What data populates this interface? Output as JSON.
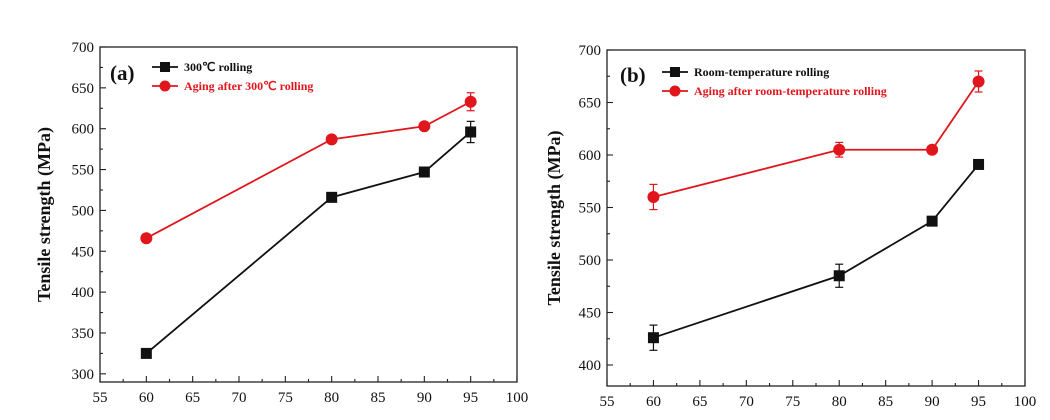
{
  "chart_data": [
    {
      "type": "line",
      "panel_label": "(a)",
      "title": "",
      "xlabel": "",
      "ylabel": "Tensile strength (MPa)",
      "xlim": [
        55,
        100
      ],
      "ylim": [
        290,
        700
      ],
      "x_ticks": [
        55,
        60,
        65,
        70,
        75,
        80,
        85,
        90,
        95,
        100
      ],
      "y_ticks": [
        300,
        350,
        400,
        450,
        500,
        550,
        600,
        650,
        700
      ],
      "legend_position": "top-left",
      "series": [
        {
          "name": "300℃ rolling",
          "color": "#111111",
          "marker": "square",
          "x": [
            60,
            80,
            90,
            95
          ],
          "values": [
            325,
            516,
            547,
            596
          ],
          "errors": [
            0,
            0,
            0,
            13
          ]
        },
        {
          "name": "Aging after 300℃ rolling",
          "color": "#e0161c",
          "marker": "circle",
          "x": [
            60,
            80,
            90,
            95
          ],
          "values": [
            466,
            587,
            603,
            633
          ],
          "errors": [
            0,
            0,
            0,
            11
          ]
        }
      ]
    },
    {
      "type": "line",
      "panel_label": "(b)",
      "title": "",
      "xlabel": "",
      "ylabel": "Tensile strength (MPa)",
      "xlim": [
        55,
        100
      ],
      "ylim": [
        380,
        700
      ],
      "x_ticks": [
        55,
        60,
        65,
        70,
        75,
        80,
        85,
        90,
        95,
        100
      ],
      "y_ticks": [
        400,
        450,
        500,
        550,
        600,
        650,
        700
      ],
      "legend_position": "top-left",
      "series": [
        {
          "name": "Room-temperature rolling",
          "color": "#111111",
          "marker": "square",
          "x": [
            60,
            80,
            90,
            95
          ],
          "values": [
            426,
            485,
            537,
            591
          ],
          "errors": [
            12,
            11,
            0,
            0
          ]
        },
        {
          "name": "Aging after room-temperature rolling",
          "color": "#e0161c",
          "marker": "circle",
          "x": [
            60,
            80,
            90,
            95
          ],
          "values": [
            560,
            605,
            605,
            670
          ],
          "errors": [
            12,
            7,
            0,
            10
          ]
        }
      ]
    }
  ]
}
